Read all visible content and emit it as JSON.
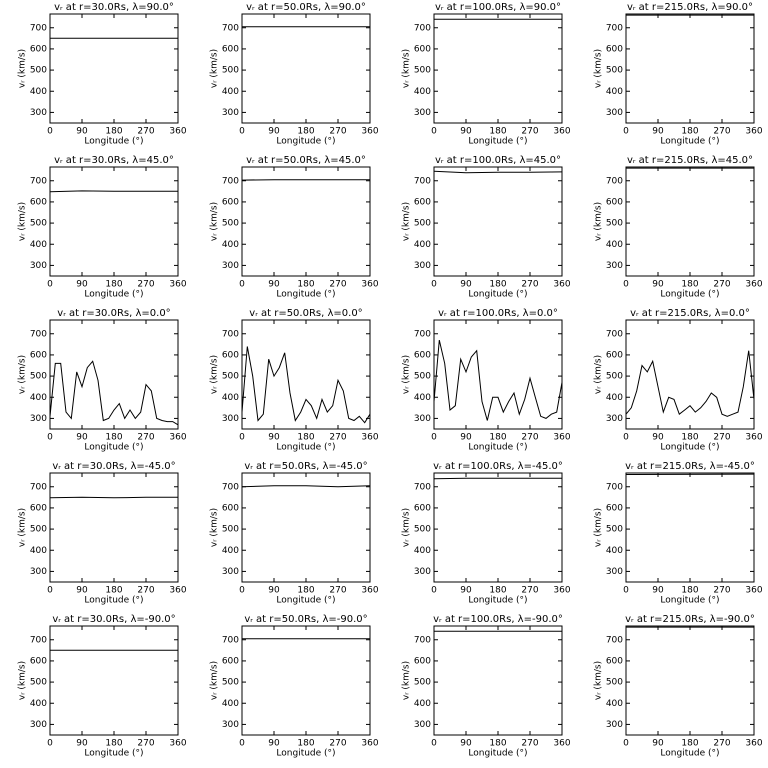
{
  "chart_data": [
    {
      "type": "line",
      "title": "vᵣ at r=30.0Rs,  λ=90.0°",
      "xlabel": "Longitude (°)",
      "ylabel": "vᵣ (km/s)",
      "x": [
        0,
        360
      ],
      "values": [
        650,
        650
      ],
      "xlim": [
        0,
        360
      ],
      "ylim": [
        250,
        765
      ],
      "xticks": [
        0,
        90,
        180,
        270,
        360
      ],
      "yticks": [
        300,
        400,
        500,
        600,
        700
      ],
      "color": "#000000"
    },
    {
      "type": "line",
      "title": "vᵣ at r=50.0Rs,  λ=90.0°",
      "xlabel": "Longitude (°)",
      "ylabel": "vᵣ (km/s)",
      "x": [
        0,
        360
      ],
      "values": [
        705,
        705
      ],
      "xlim": [
        0,
        360
      ],
      "ylim": [
        250,
        765
      ],
      "xticks": [
        0,
        90,
        180,
        270,
        360
      ],
      "yticks": [
        300,
        400,
        500,
        600,
        700
      ],
      "color": "#000000"
    },
    {
      "type": "line",
      "title": "vᵣ at r=100.0Rs,  λ=90.0°",
      "xlabel": "Longitude (°)",
      "ylabel": "vᵣ (km/s)",
      "x": [
        0,
        360
      ],
      "values": [
        740,
        740
      ],
      "xlim": [
        0,
        360
      ],
      "ylim": [
        250,
        765
      ],
      "xticks": [
        0,
        90,
        180,
        270,
        360
      ],
      "yticks": [
        300,
        400,
        500,
        600,
        700
      ],
      "color": "#000000"
    },
    {
      "type": "line",
      "title": "vᵣ at r=215.0Rs,  λ=90.0°",
      "xlabel": "Longitude (°)",
      "ylabel": "vᵣ (km/s)",
      "x": [
        0,
        360
      ],
      "values": [
        760,
        760
      ],
      "xlim": [
        0,
        360
      ],
      "ylim": [
        250,
        765
      ],
      "xticks": [
        0,
        90,
        180,
        270,
        360
      ],
      "yticks": [
        300,
        400,
        500,
        600,
        700
      ],
      "color": "#000000"
    },
    {
      "type": "line",
      "title": "vᵣ at r=30.0Rs,  λ=45.0°",
      "xlabel": "Longitude (°)",
      "ylabel": "vᵣ (km/s)",
      "x": [
        0,
        90,
        180,
        270,
        360
      ],
      "values": [
        648,
        652,
        650,
        650,
        650
      ],
      "xlim": [
        0,
        360
      ],
      "ylim": [
        250,
        765
      ],
      "xticks": [
        0,
        90,
        180,
        270,
        360
      ],
      "yticks": [
        300,
        400,
        500,
        600,
        700
      ],
      "color": "#000000"
    },
    {
      "type": "line",
      "title": "vᵣ at r=50.0Rs,  λ=45.0°",
      "xlabel": "Longitude (°)",
      "ylabel": "vᵣ (km/s)",
      "x": [
        0,
        90,
        180,
        270,
        360
      ],
      "values": [
        703,
        705,
        705,
        705,
        705
      ],
      "xlim": [
        0,
        360
      ],
      "ylim": [
        250,
        765
      ],
      "xticks": [
        0,
        90,
        180,
        270,
        360
      ],
      "yticks": [
        300,
        400,
        500,
        600,
        700
      ],
      "color": "#000000"
    },
    {
      "type": "line",
      "title": "vᵣ at r=100.0Rs,  λ=45.0°",
      "xlabel": "Longitude (°)",
      "ylabel": "vᵣ (km/s)",
      "x": [
        0,
        90,
        180,
        270,
        360
      ],
      "values": [
        745,
        738,
        740,
        740,
        742
      ],
      "xlim": [
        0,
        360
      ],
      "ylim": [
        250,
        765
      ],
      "xticks": [
        0,
        90,
        180,
        270,
        360
      ],
      "yticks": [
        300,
        400,
        500,
        600,
        700
      ],
      "color": "#000000"
    },
    {
      "type": "line",
      "title": "vᵣ at r=215.0Rs,  λ=45.0°",
      "xlabel": "Longitude (°)",
      "ylabel": "vᵣ (km/s)",
      "x": [
        0,
        360
      ],
      "values": [
        760,
        760
      ],
      "xlim": [
        0,
        360
      ],
      "ylim": [
        250,
        765
      ],
      "xticks": [
        0,
        90,
        180,
        270,
        360
      ],
      "yticks": [
        300,
        400,
        500,
        600,
        700
      ],
      "color": "#000000"
    },
    {
      "type": "line",
      "title": "vᵣ at r=30.0Rs,  λ=0.0°",
      "xlabel": "Longitude (°)",
      "ylabel": "vᵣ (km/s)",
      "x": [
        0,
        15,
        30,
        45,
        60,
        75,
        90,
        105,
        120,
        135,
        150,
        165,
        180,
        195,
        210,
        225,
        240,
        255,
        270,
        285,
        300,
        315,
        330,
        345,
        360
      ],
      "values": [
        310,
        560,
        560,
        330,
        300,
        520,
        450,
        540,
        570,
        480,
        290,
        300,
        340,
        370,
        300,
        340,
        300,
        330,
        460,
        430,
        300,
        290,
        285,
        285,
        270
      ],
      "xlim": [
        0,
        360
      ],
      "ylim": [
        250,
        765
      ],
      "xticks": [
        0,
        90,
        180,
        270,
        360
      ],
      "yticks": [
        300,
        400,
        500,
        600,
        700
      ],
      "color": "#000000"
    },
    {
      "type": "line",
      "title": "vᵣ at r=50.0Rs,  λ=0.0°",
      "xlabel": "Longitude (°)",
      "ylabel": "vᵣ (km/s)",
      "x": [
        0,
        15,
        30,
        45,
        60,
        75,
        90,
        105,
        120,
        135,
        150,
        165,
        180,
        195,
        210,
        225,
        240,
        255,
        270,
        285,
        300,
        315,
        330,
        345,
        360
      ],
      "values": [
        330,
        640,
        500,
        290,
        320,
        580,
        500,
        540,
        610,
        420,
        290,
        330,
        390,
        360,
        300,
        390,
        330,
        360,
        480,
        430,
        300,
        290,
        310,
        280,
        320
      ],
      "xlim": [
        0,
        360
      ],
      "ylim": [
        250,
        765
      ],
      "xticks": [
        0,
        90,
        180,
        270,
        360
      ],
      "yticks": [
        300,
        400,
        500,
        600,
        700
      ],
      "color": "#000000"
    },
    {
      "type": "line",
      "title": "vᵣ at r=100.0Rs,  λ=0.0°",
      "xlabel": "Longitude (°)",
      "ylabel": "vᵣ (km/s)",
      "x": [
        0,
        15,
        30,
        45,
        60,
        75,
        90,
        105,
        120,
        135,
        150,
        165,
        180,
        195,
        210,
        225,
        240,
        255,
        270,
        285,
        300,
        315,
        330,
        345,
        360
      ],
      "values": [
        380,
        670,
        560,
        340,
        360,
        580,
        520,
        590,
        620,
        380,
        290,
        400,
        400,
        330,
        380,
        420,
        320,
        390,
        490,
        400,
        310,
        300,
        320,
        330,
        470
      ],
      "xlim": [
        0,
        360
      ],
      "ylim": [
        250,
        765
      ],
      "xticks": [
        0,
        90,
        180,
        270,
        360
      ],
      "yticks": [
        300,
        400,
        500,
        600,
        700
      ],
      "color": "#000000"
    },
    {
      "type": "line",
      "title": "vᵣ at r=215.0Rs,  λ=0.0°",
      "xlabel": "Longitude (°)",
      "ylabel": "vᵣ (km/s)",
      "x": [
        0,
        15,
        30,
        45,
        60,
        75,
        90,
        105,
        120,
        135,
        150,
        165,
        180,
        195,
        210,
        225,
        240,
        255,
        270,
        285,
        300,
        315,
        330,
        345,
        360
      ],
      "values": [
        320,
        350,
        430,
        550,
        520,
        570,
        450,
        330,
        400,
        390,
        320,
        340,
        360,
        330,
        350,
        380,
        420,
        400,
        320,
        310,
        320,
        330,
        450,
        620,
        390
      ],
      "xlim": [
        0,
        360
      ],
      "ylim": [
        250,
        765
      ],
      "xticks": [
        0,
        90,
        180,
        270,
        360
      ],
      "yticks": [
        300,
        400,
        500,
        600,
        700
      ],
      "color": "#000000"
    },
    {
      "type": "line",
      "title": "vᵣ at r=30.0Rs,  λ=-45.0°",
      "xlabel": "Longitude (°)",
      "ylabel": "vᵣ (km/s)",
      "x": [
        0,
        90,
        180,
        270,
        360
      ],
      "values": [
        648,
        650,
        648,
        650,
        650
      ],
      "xlim": [
        0,
        360
      ],
      "ylim": [
        250,
        765
      ],
      "xticks": [
        0,
        90,
        180,
        270,
        360
      ],
      "yticks": [
        300,
        400,
        500,
        600,
        700
      ],
      "color": "#000000"
    },
    {
      "type": "line",
      "title": "vᵣ at r=50.0Rs,  λ=-45.0°",
      "xlabel": "Longitude (°)",
      "ylabel": "vᵣ (km/s)",
      "x": [
        0,
        90,
        180,
        270,
        360
      ],
      "values": [
        700,
        705,
        705,
        700,
        705
      ],
      "xlim": [
        0,
        360
      ],
      "ylim": [
        250,
        765
      ],
      "xticks": [
        0,
        90,
        180,
        270,
        360
      ],
      "yticks": [
        300,
        400,
        500,
        600,
        700
      ],
      "color": "#000000"
    },
    {
      "type": "line",
      "title": "vᵣ at r=100.0Rs,  λ=-45.0°",
      "xlabel": "Longitude (°)",
      "ylabel": "vᵣ (km/s)",
      "x": [
        0,
        90,
        180,
        270,
        360
      ],
      "values": [
        738,
        740,
        740,
        740,
        740
      ],
      "xlim": [
        0,
        360
      ],
      "ylim": [
        250,
        765
      ],
      "xticks": [
        0,
        90,
        180,
        270,
        360
      ],
      "yticks": [
        300,
        400,
        500,
        600,
        700
      ],
      "color": "#000000"
    },
    {
      "type": "line",
      "title": "vᵣ at r=215.0Rs,  λ=-45.0°",
      "xlabel": "Longitude (°)",
      "ylabel": "vᵣ (km/s)",
      "x": [
        0,
        360
      ],
      "values": [
        758,
        760
      ],
      "xlim": [
        0,
        360
      ],
      "ylim": [
        250,
        765
      ],
      "xticks": [
        0,
        90,
        180,
        270,
        360
      ],
      "yticks": [
        300,
        400,
        500,
        600,
        700
      ],
      "color": "#000000"
    },
    {
      "type": "line",
      "title": "vᵣ at r=30.0Rs,  λ=-90.0°",
      "xlabel": "Longitude (°)",
      "ylabel": "vᵣ (km/s)",
      "x": [
        0,
        360
      ],
      "values": [
        650,
        650
      ],
      "xlim": [
        0,
        360
      ],
      "ylim": [
        250,
        765
      ],
      "xticks": [
        0,
        90,
        180,
        270,
        360
      ],
      "yticks": [
        300,
        400,
        500,
        600,
        700
      ],
      "color": "#000000"
    },
    {
      "type": "line",
      "title": "vᵣ at r=50.0Rs,  λ=-90.0°",
      "xlabel": "Longitude (°)",
      "ylabel": "vᵣ (km/s)",
      "x": [
        0,
        360
      ],
      "values": [
        705,
        705
      ],
      "xlim": [
        0,
        360
      ],
      "ylim": [
        250,
        765
      ],
      "xticks": [
        0,
        90,
        180,
        270,
        360
      ],
      "yticks": [
        300,
        400,
        500,
        600,
        700
      ],
      "color": "#000000"
    },
    {
      "type": "line",
      "title": "vᵣ at r=100.0Rs,  λ=-90.0°",
      "xlabel": "Longitude (°)",
      "ylabel": "vᵣ (km/s)",
      "x": [
        0,
        360
      ],
      "values": [
        740,
        740
      ],
      "xlim": [
        0,
        360
      ],
      "ylim": [
        250,
        765
      ],
      "xticks": [
        0,
        90,
        180,
        270,
        360
      ],
      "yticks": [
        300,
        400,
        500,
        600,
        700
      ],
      "color": "#000000"
    },
    {
      "type": "line",
      "title": "vᵣ at r=215.0Rs,  λ=-90.0°",
      "xlabel": "Longitude (°)",
      "ylabel": "vᵣ (km/s)",
      "x": [
        0,
        360
      ],
      "values": [
        760,
        760
      ],
      "xlim": [
        0,
        360
      ],
      "ylim": [
        250,
        765
      ],
      "xticks": [
        0,
        90,
        180,
        270,
        360
      ],
      "yticks": [
        300,
        400,
        500,
        600,
        700
      ],
      "color": "#000000"
    }
  ]
}
